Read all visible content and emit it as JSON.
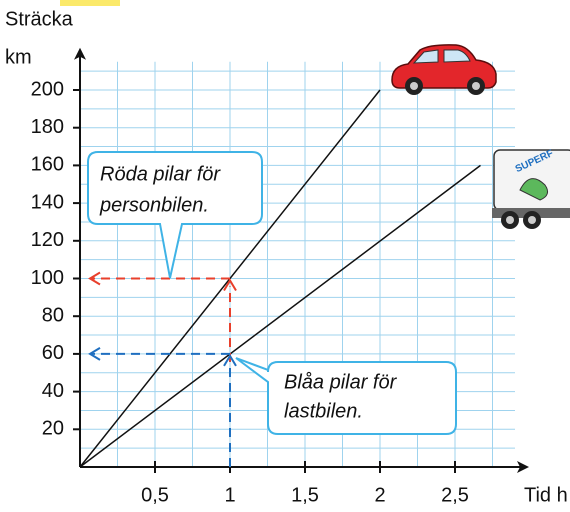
{
  "chart_data": {
    "type": "line",
    "y_label_lines": [
      "Sträcka",
      "km"
    ],
    "x_label": "Tid h",
    "xlim": [
      0,
      2.9
    ],
    "ylim": [
      0,
      215
    ],
    "xticks": [
      {
        "value": 0.5,
        "label": "0,5"
      },
      1,
      {
        "value": 1.5,
        "label": "1,5"
      },
      2,
      {
        "value": 2.5,
        "label": "2,5"
      }
    ],
    "yticks": [
      20,
      40,
      60,
      80,
      100,
      120,
      140,
      160,
      180,
      200
    ],
    "grid": true,
    "grid_color": "#9fd3ee",
    "series": [
      {
        "color": "#111111",
        "x": [
          0,
          2
        ],
        "values": [
          0,
          200
        ]
      },
      {
        "color": "#111111",
        "x": [
          0,
          2.67
        ],
        "values": [
          0,
          160
        ]
      }
    ],
    "readings": [
      {
        "x": 1,
        "y": 100,
        "color": "#e8402c"
      },
      {
        "x": 1,
        "y": 60,
        "color": "#1f6fc0"
      }
    ],
    "annotations": [
      {
        "lines": [
          "Röda pilar för",
          "personbilen."
        ]
      },
      {
        "lines": [
          "Blåa pilar för",
          "lastbilen."
        ]
      }
    ],
    "truck_label": "SUPERF"
  }
}
